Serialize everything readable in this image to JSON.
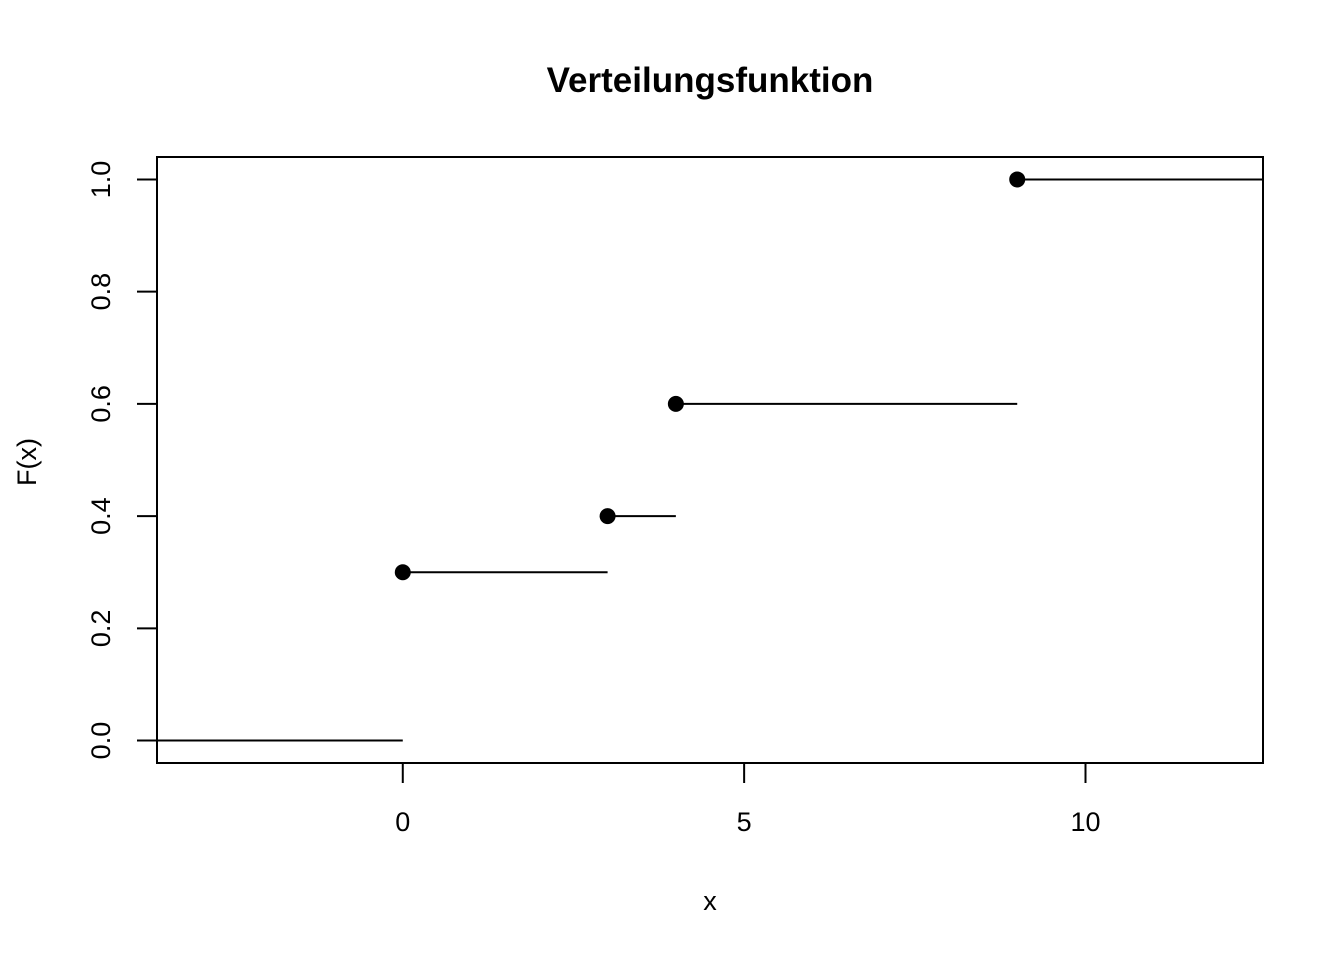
{
  "chart_data": {
    "type": "step",
    "title": "Verteilungsfunktion",
    "xlabel": "x",
    "ylabel": "F(x)",
    "xlim": [
      -3.6,
      12.6
    ],
    "ylim": [
      -0.04,
      1.04
    ],
    "x_ticks": [
      "0",
      "5",
      "10"
    ],
    "y_ticks": [
      "0.0",
      "0.2",
      "0.4",
      "0.6",
      "0.8",
      "1.0"
    ],
    "steps": [
      {
        "x_start": -3.6,
        "x_end": 0,
        "y": 0.0,
        "point": false
      },
      {
        "x_start": 0,
        "x_end": 3,
        "y": 0.3,
        "point": true
      },
      {
        "x_start": 3,
        "x_end": 4,
        "y": 0.4,
        "point": true
      },
      {
        "x_start": 4,
        "x_end": 9,
        "y": 0.6,
        "point": true
      },
      {
        "x_start": 9,
        "x_end": 12.6,
        "y": 1.0,
        "point": true
      }
    ],
    "grid": false,
    "color": "#000000"
  }
}
